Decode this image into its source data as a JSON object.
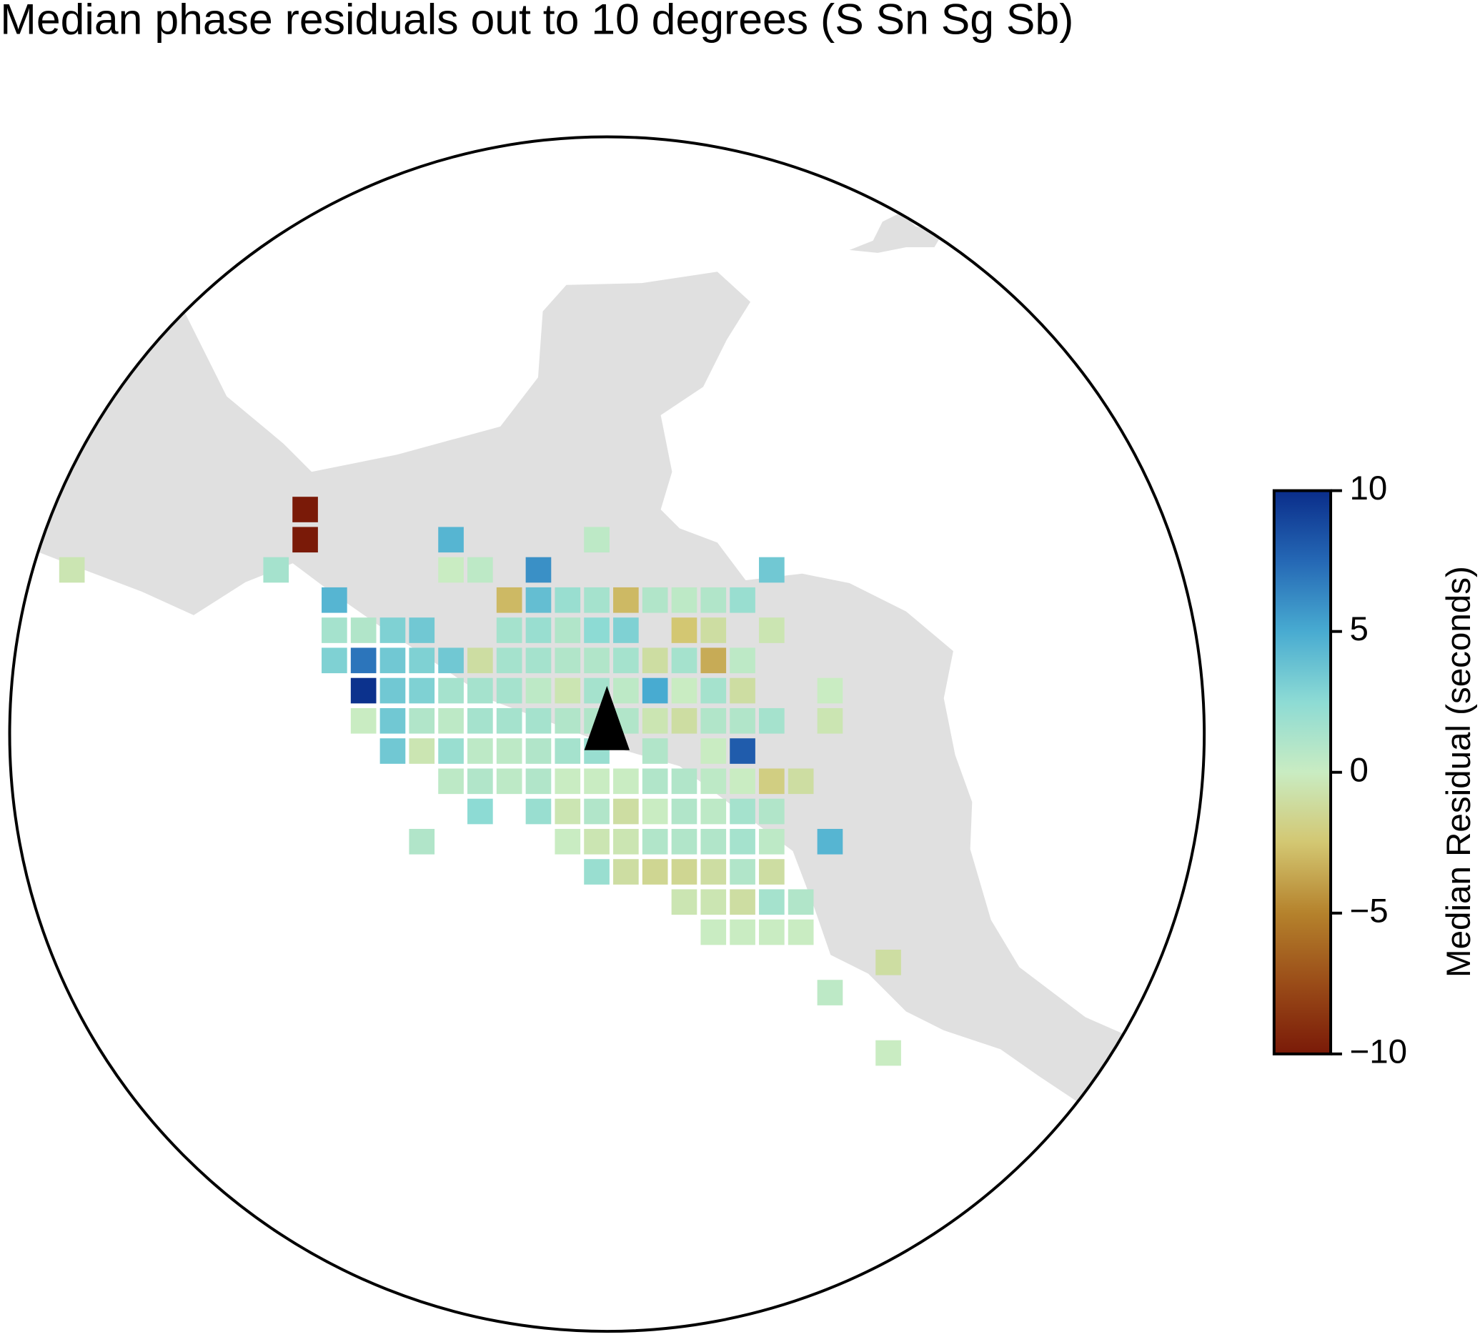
{
  "chart_data": {
    "type": "heatmap",
    "title": "Median phase residuals out to 10 degrees (S Sn Sg Sb)",
    "colorbar_label": "Median Residual (seconds)",
    "clim": [
      -10,
      10
    ],
    "colorscale": [
      "#7a1a08",
      "#9a4c18",
      "#b5822c",
      "#d3c772",
      "#c9ecc2",
      "#8ddbd4",
      "#48abd1",
      "#2568b5",
      "#0a2d8a"
    ],
    "cticks": [
      {
        "value": -10,
        "label": "−10"
      },
      {
        "value": -5,
        "label": "−5"
      },
      0,
      5,
      10
    ],
    "values": [
      [
        null,
        null,
        null,
        null,
        null,
        null,
        null,
        null,
        -10,
        null,
        null,
        null,
        null,
        null,
        null,
        null,
        null,
        null,
        null,
        null,
        null,
        null,
        null,
        null,
        null,
        null,
        null,
        null,
        null
      ],
      [
        null,
        null,
        null,
        null,
        null,
        null,
        null,
        null,
        -10,
        null,
        null,
        null,
        null,
        4.5,
        null,
        null,
        null,
        null,
        0.5,
        null,
        null,
        null,
        null,
        null,
        null,
        null,
        null,
        null,
        null
      ],
      [
        -0.5,
        null,
        null,
        null,
        null,
        null,
        null,
        1.5,
        null,
        null,
        null,
        null,
        null,
        0,
        0.5,
        null,
        6,
        null,
        null,
        null,
        null,
        null,
        null,
        null,
        3.5,
        null,
        null,
        null,
        null
      ],
      [
        null,
        null,
        null,
        null,
        null,
        null,
        null,
        null,
        null,
        4.5,
        null,
        null,
        null,
        null,
        null,
        -3,
        4,
        2,
        1.5,
        -3,
        1,
        0.5,
        1,
        2,
        null,
        null,
        null,
        null,
        null
      ],
      [
        null,
        null,
        null,
        null,
        null,
        null,
        null,
        null,
        null,
        1.5,
        1,
        3,
        3.5,
        null,
        null,
        1.5,
        2,
        1,
        2.5,
        3,
        null,
        -2.5,
        -1,
        null,
        -0.5,
        null,
        null,
        null,
        null
      ],
      [
        null,
        null,
        null,
        null,
        null,
        null,
        null,
        null,
        null,
        3,
        7,
        3.5,
        3,
        3.5,
        -1,
        1.5,
        1.5,
        1,
        1,
        1.5,
        -1,
        1.5,
        -3.5,
        0.5,
        null,
        null,
        null,
        null,
        null
      ],
      [
        null,
        null,
        null,
        null,
        null,
        null,
        null,
        null,
        null,
        null,
        9.8,
        3.5,
        3,
        1.5,
        1.5,
        1.5,
        0.5,
        -0.5,
        1.5,
        0.5,
        5,
        0,
        1.5,
        -1,
        null,
        null,
        0,
        null,
        null
      ],
      [
        null,
        null,
        null,
        null,
        null,
        null,
        null,
        null,
        null,
        null,
        0,
        3.5,
        1,
        0.5,
        1.5,
        1.5,
        1.5,
        1,
        1,
        1,
        -0.5,
        -1,
        1,
        1,
        1.5,
        null,
        -0.5,
        null,
        null
      ],
      [
        null,
        null,
        null,
        null,
        null,
        null,
        null,
        null,
        null,
        null,
        null,
        3.5,
        -0.5,
        2,
        0.5,
        0.5,
        1,
        1.5,
        2,
        null,
        1,
        null,
        0,
        8,
        null,
        null,
        null,
        null,
        null
      ],
      [
        null,
        null,
        null,
        null,
        null,
        null,
        null,
        null,
        null,
        null,
        null,
        null,
        null,
        0.5,
        1,
        0.5,
        1,
        0,
        0,
        0,
        1,
        1,
        0.5,
        0,
        -2,
        -1,
        null,
        null,
        null
      ],
      [
        null,
        null,
        null,
        null,
        null,
        null,
        null,
        null,
        null,
        null,
        null,
        null,
        null,
        null,
        2.5,
        null,
        2,
        -0.5,
        1,
        -1,
        0,
        1,
        0.5,
        1.5,
        1,
        null,
        null,
        null,
        null
      ],
      [
        null,
        null,
        null,
        null,
        null,
        null,
        null,
        null,
        null,
        null,
        null,
        null,
        1,
        null,
        null,
        null,
        null,
        0,
        -0.5,
        -0.5,
        1,
        1,
        1,
        1.5,
        0.5,
        null,
        4.5,
        null,
        null
      ],
      [
        null,
        null,
        null,
        null,
        null,
        null,
        null,
        null,
        null,
        null,
        null,
        null,
        null,
        null,
        null,
        null,
        null,
        null,
        2,
        -1,
        -1.5,
        -1.5,
        -1,
        1,
        -1,
        null,
        null,
        null,
        null
      ],
      [
        null,
        null,
        null,
        null,
        null,
        null,
        null,
        null,
        null,
        null,
        null,
        null,
        null,
        null,
        null,
        null,
        null,
        null,
        null,
        null,
        null,
        -0.5,
        -0.5,
        -1,
        1.5,
        1,
        null,
        null,
        null
      ],
      [
        null,
        null,
        null,
        null,
        null,
        null,
        null,
        null,
        null,
        null,
        null,
        null,
        null,
        null,
        null,
        null,
        null,
        null,
        null,
        null,
        null,
        null,
        0,
        0,
        0,
        0,
        null,
        null,
        null
      ],
      [
        null,
        null,
        null,
        null,
        null,
        null,
        null,
        null,
        null,
        null,
        null,
        null,
        null,
        null,
        null,
        null,
        null,
        null,
        null,
        null,
        null,
        null,
        null,
        null,
        null,
        null,
        null,
        null,
        -1
      ],
      [
        null,
        null,
        null,
        null,
        null,
        null,
        null,
        null,
        null,
        null,
        null,
        null,
        null,
        null,
        null,
        null,
        null,
        null,
        null,
        null,
        null,
        null,
        null,
        null,
        null,
        null,
        0.5,
        null,
        null
      ],
      [
        null,
        null,
        null,
        null,
        null,
        null,
        null,
        null,
        null,
        null,
        null,
        null,
        null,
        null,
        null,
        null,
        null,
        null,
        null,
        null,
        null,
        null,
        null,
        null,
        null,
        null,
        null,
        null,
        null
      ],
      [
        null,
        null,
        null,
        null,
        null,
        null,
        null,
        null,
        null,
        null,
        null,
        null,
        null,
        null,
        null,
        null,
        null,
        null,
        null,
        null,
        null,
        null,
        null,
        null,
        null,
        null,
        null,
        null,
        0
      ]
    ]
  }
}
